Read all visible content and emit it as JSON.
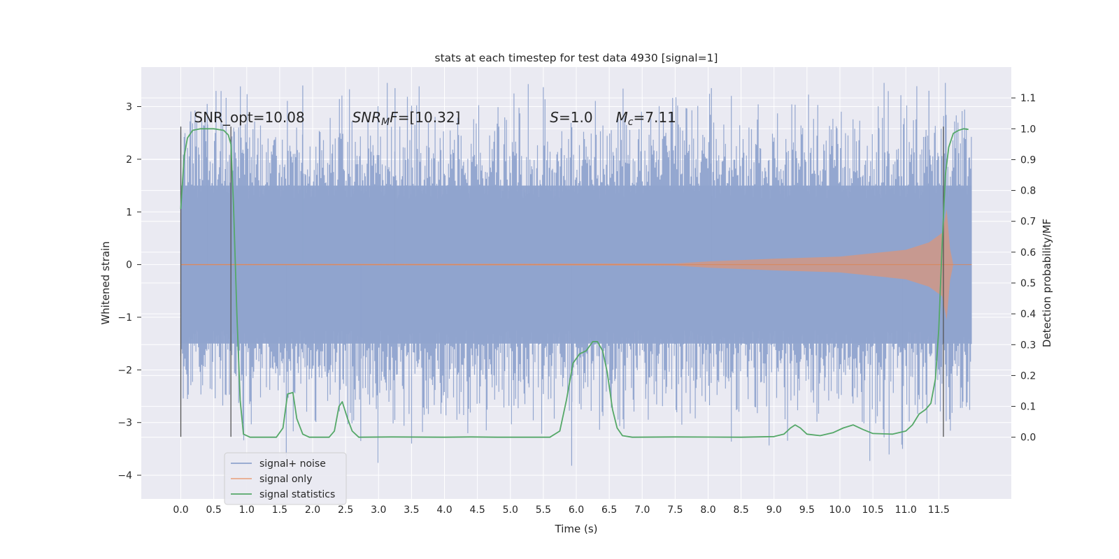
{
  "chart_data": {
    "type": "line",
    "title": "stats at each timestep for test data 4930 [signal=1]",
    "xlabel": "Time (s)",
    "ylabel": "Whitened strain",
    "y2label": "Detection probability/MF",
    "xlim": [
      -0.6,
      12.6
    ],
    "ylim": [
      -4.45,
      3.75
    ],
    "y2lim": [
      -0.2,
      1.2
    ],
    "grid": true,
    "xticks": [
      "0.0",
      "0.5",
      "1.0",
      "1.5",
      "2.0",
      "2.5",
      "3.0",
      "3.5",
      "4.0",
      "4.5",
      "5.0",
      "5.5",
      "6.0",
      "6.5",
      "7.0",
      "7.5",
      "8.0",
      "8.5",
      "9.0",
      "9.5",
      "10.0",
      "10.5",
      "11.0",
      "11.5"
    ],
    "yticks": [
      "3",
      "2",
      "1",
      "0",
      "−1",
      "−2",
      "−3",
      "−4"
    ],
    "y2ticks": [
      "1.1",
      "1.0",
      "0.9",
      "0.8",
      "0.7",
      "0.6",
      "0.5",
      "0.4",
      "0.3",
      "0.2",
      "0.1",
      "0.0"
    ],
    "annotations": [
      {
        "text": "SNR_opt=10.08",
        "x": 0.2,
        "y": 2.7
      },
      {
        "text": "SNR_MF=[10.32]",
        "x": 2.6,
        "y": 2.7,
        "math": true
      },
      {
        "text": "S=1.0",
        "x": 5.6,
        "y": 2.7,
        "math": true
      },
      {
        "text": "M_c=7.11",
        "x": 6.6,
        "y": 2.7,
        "math": true
      }
    ],
    "vertical_lines": [
      {
        "x": 0.0,
        "ymin": -3.27,
        "ymax": 2.62
      },
      {
        "x": 0.76,
        "ymin": -3.27,
        "ymax": 2.62
      },
      {
        "x": 11.57,
        "ymin": -3.27,
        "ymax": 2.62
      }
    ],
    "legend": {
      "position": "lower-left",
      "entries": [
        "signal+ noise",
        "signal only",
        "signal statistics"
      ]
    },
    "series": [
      {
        "name": "signal+ noise",
        "axis": "left",
        "color": "#8fa3cd",
        "kind": "noise",
        "x_range": [
          0.0,
          12.0
        ],
        "band": [
          -1.5,
          1.5
        ],
        "range": [
          -3.82,
          3.45
        ]
      },
      {
        "name": "signal only",
        "axis": "left",
        "color": "#dd8452",
        "kind": "chirp",
        "x_range": [
          0.0,
          12.0
        ],
        "envelope": [
          [
            0.0,
            0.01
          ],
          [
            7.5,
            0.02
          ],
          [
            8.0,
            0.06
          ],
          [
            9.0,
            0.11
          ],
          [
            10.0,
            0.15
          ],
          [
            11.0,
            0.28
          ],
          [
            11.35,
            0.42
          ],
          [
            11.55,
            0.6
          ],
          [
            11.62,
            1.05
          ],
          [
            11.67,
            0.3
          ],
          [
            11.72,
            0.0
          ],
          [
            12.0,
            0.0
          ]
        ]
      },
      {
        "name": "signal statistics",
        "axis": "right",
        "color": "#55a868",
        "kind": "line",
        "points": [
          [
            0.0,
            0.74
          ],
          [
            0.05,
            0.91
          ],
          [
            0.1,
            0.97
          ],
          [
            0.18,
            0.995
          ],
          [
            0.3,
            1.0
          ],
          [
            0.5,
            1.0
          ],
          [
            0.65,
            0.995
          ],
          [
            0.72,
            0.98
          ],
          [
            0.76,
            0.95
          ],
          [
            0.8,
            0.75
          ],
          [
            0.85,
            0.4
          ],
          [
            0.9,
            0.12
          ],
          [
            0.95,
            0.01
          ],
          [
            1.05,
            0.0
          ],
          [
            1.45,
            0.0
          ],
          [
            1.55,
            0.03
          ],
          [
            1.62,
            0.14
          ],
          [
            1.7,
            0.145
          ],
          [
            1.76,
            0.06
          ],
          [
            1.85,
            0.01
          ],
          [
            1.95,
            0.0
          ],
          [
            2.25,
            0.0
          ],
          [
            2.33,
            0.02
          ],
          [
            2.4,
            0.1
          ],
          [
            2.45,
            0.115
          ],
          [
            2.53,
            0.06
          ],
          [
            2.6,
            0.02
          ],
          [
            2.7,
            0.0
          ],
          [
            3.2,
            0.001
          ],
          [
            4.0,
            0.0
          ],
          [
            4.4,
            0.001
          ],
          [
            4.8,
            0.0
          ],
          [
            5.6,
            0.0
          ],
          [
            5.75,
            0.02
          ],
          [
            5.85,
            0.12
          ],
          [
            5.95,
            0.24
          ],
          [
            6.05,
            0.27
          ],
          [
            6.15,
            0.28
          ],
          [
            6.25,
            0.31
          ],
          [
            6.32,
            0.31
          ],
          [
            6.4,
            0.28
          ],
          [
            6.47,
            0.21
          ],
          [
            6.55,
            0.09
          ],
          [
            6.62,
            0.03
          ],
          [
            6.7,
            0.005
          ],
          [
            6.85,
            0.0
          ],
          [
            7.5,
            0.001
          ],
          [
            8.5,
            0.0
          ],
          [
            9.0,
            0.002
          ],
          [
            9.15,
            0.01
          ],
          [
            9.25,
            0.03
          ],
          [
            9.32,
            0.04
          ],
          [
            9.4,
            0.03
          ],
          [
            9.5,
            0.01
          ],
          [
            9.7,
            0.005
          ],
          [
            9.9,
            0.015
          ],
          [
            10.05,
            0.03
          ],
          [
            10.2,
            0.04
          ],
          [
            10.35,
            0.025
          ],
          [
            10.5,
            0.012
          ],
          [
            10.8,
            0.01
          ],
          [
            11.0,
            0.02
          ],
          [
            11.1,
            0.04
          ],
          [
            11.2,
            0.075
          ],
          [
            11.3,
            0.09
          ],
          [
            11.38,
            0.11
          ],
          [
            11.45,
            0.19
          ],
          [
            11.5,
            0.35
          ],
          [
            11.55,
            0.62
          ],
          [
            11.6,
            0.85
          ],
          [
            11.65,
            0.94
          ],
          [
            11.72,
            0.985
          ],
          [
            11.8,
            0.995
          ],
          [
            11.88,
            1.0
          ],
          [
            11.95,
            0.998
          ]
        ]
      }
    ]
  }
}
